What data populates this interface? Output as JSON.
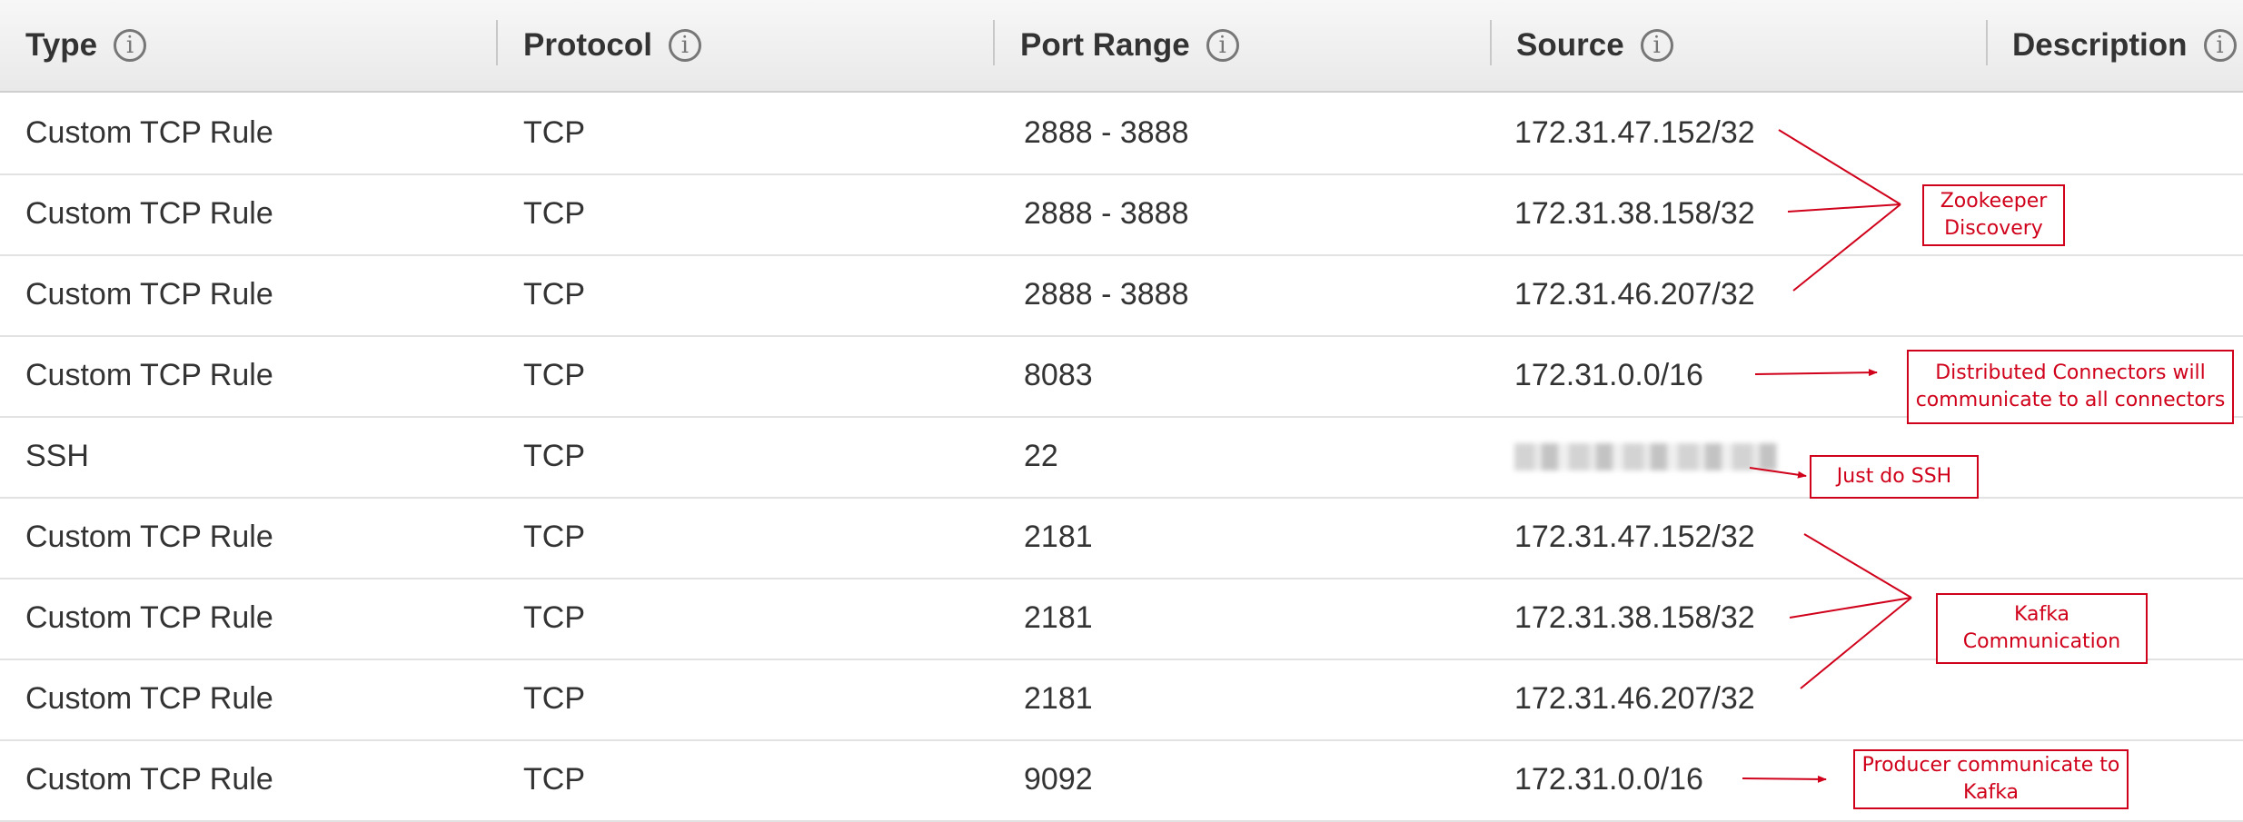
{
  "table": {
    "headers": [
      {
        "label": "Type",
        "icon": "info-icon"
      },
      {
        "label": "Protocol",
        "icon": "info-icon"
      },
      {
        "label": "Port Range",
        "icon": "info-icon"
      },
      {
        "label": "Source",
        "icon": "info-icon"
      },
      {
        "label": "Description",
        "icon": "info-icon"
      }
    ],
    "rows": [
      {
        "type": "Custom TCP Rule",
        "protocol": "TCP",
        "port_range": "2888 - 3888",
        "source": "172.31.47.152/32"
      },
      {
        "type": "Custom TCP Rule",
        "protocol": "TCP",
        "port_range": "2888 - 3888",
        "source": "172.31.38.158/32"
      },
      {
        "type": "Custom TCP Rule",
        "protocol": "TCP",
        "port_range": "2888 - 3888",
        "source": "172.31.46.207/32"
      },
      {
        "type": "Custom TCP Rule",
        "protocol": "TCP",
        "port_range": "8083",
        "source": "172.31.0.0/16"
      },
      {
        "type": "SSH",
        "protocol": "TCP",
        "port_range": "22",
        "source": ""
      },
      {
        "type": "Custom TCP Rule",
        "protocol": "TCP",
        "port_range": "2181",
        "source": "172.31.47.152/32"
      },
      {
        "type": "Custom TCP Rule",
        "protocol": "TCP",
        "port_range": "2181",
        "source": "172.31.38.158/32"
      },
      {
        "type": "Custom TCP Rule",
        "protocol": "TCP",
        "port_range": "2181",
        "source": "172.31.46.207/32"
      },
      {
        "type": "Custom TCP Rule",
        "protocol": "TCP",
        "port_range": "9092",
        "source": "172.31.0.0/16"
      }
    ]
  },
  "annotations": {
    "zookeeper": "Zookeeper Discovery",
    "connectors": "Distributed Connectors will communicate to all connectors",
    "ssh": "Just do SSH",
    "kafka": "Kafka Communication",
    "producer": "Producer communicate to Kafka"
  },
  "colors": {
    "annotation": "#d0021b",
    "header_bg": "#eeeeee",
    "text": "#333333"
  }
}
